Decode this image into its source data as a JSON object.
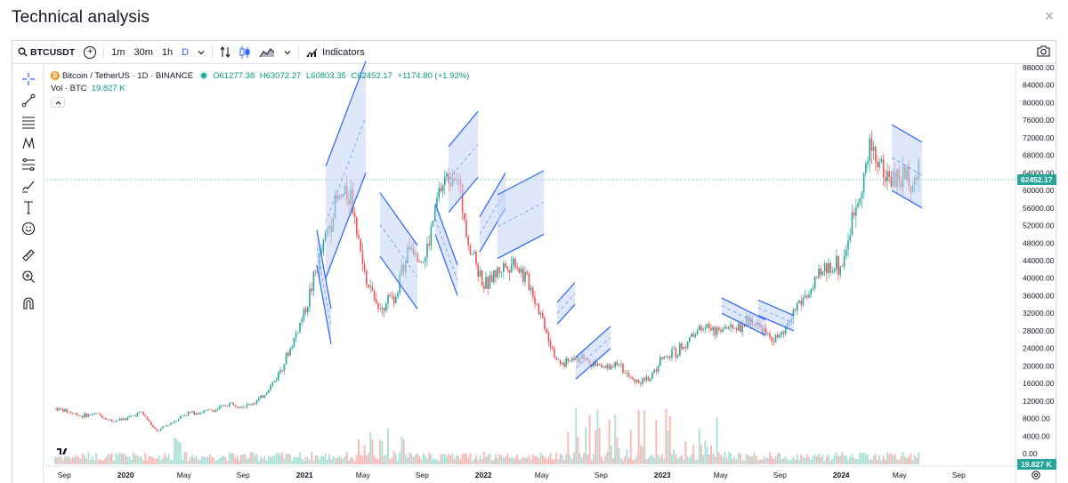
{
  "dialog": {
    "title": "Technical analysis",
    "close_glyph": "×"
  },
  "toolbar": {
    "symbol": "BTCUSDT",
    "intervals": [
      "1m",
      "30m",
      "1h",
      "D"
    ],
    "active_interval": "D",
    "indicators_label": "Indicators"
  },
  "legend": {
    "name": "Bitcoin / TetherUS · 1D · BINANCE",
    "open": "O61277.38",
    "high": "H63072.27",
    "low": "L60803.35",
    "close": "C62452.17",
    "change": "+1174.80 (+1.92%)",
    "vol_label": "Vol · BTC",
    "vol_value": "19.827 K"
  },
  "price_axis": {
    "ticks": [
      "88000.00",
      "84000.00",
      "80000.00",
      "76000.00",
      "72000.00",
      "68000.00",
      "64000.00",
      "60000.00",
      "56000.00",
      "52000.00",
      "48000.00",
      "44000.00",
      "40000.00",
      "36000.00",
      "32000.00",
      "28000.00",
      "24000.00",
      "20000.00",
      "16000.00",
      "12000.00",
      "8000.00",
      "4000.00",
      "0.00"
    ],
    "tick_values": [
      88000,
      84000,
      80000,
      76000,
      72000,
      68000,
      64000,
      60000,
      56000,
      52000,
      48000,
      44000,
      40000,
      36000,
      32000,
      28000,
      24000,
      20000,
      16000,
      12000,
      8000,
      4000,
      0
    ],
    "last_price_label": "62452.17",
    "last_price": 62452.17,
    "volume_label": "19.827 K"
  },
  "time_axis": {
    "labels": [
      {
        "text": "Sep",
        "year": false
      },
      {
        "text": "2020",
        "year": true
      },
      {
        "text": "May",
        "year": false
      },
      {
        "text": "Sep",
        "year": false
      },
      {
        "text": "2021",
        "year": true
      },
      {
        "text": "May",
        "year": false
      },
      {
        "text": "Sep",
        "year": false
      },
      {
        "text": "2022",
        "year": true
      },
      {
        "text": "May",
        "year": false
      },
      {
        "text": "Sep",
        "year": false
      },
      {
        "text": "2023",
        "year": true
      },
      {
        "text": "May",
        "year": false
      },
      {
        "text": "Sep",
        "year": false
      },
      {
        "text": "2024",
        "year": true
      },
      {
        "text": "May",
        "year": false
      },
      {
        "text": "Sep",
        "year": false
      }
    ]
  },
  "colors": {
    "up": "#26a69a",
    "down": "#ef5350",
    "drawing": "#2962ff",
    "channel_fill": "#c5d3f6",
    "price_line": "#26a69a"
  },
  "drawing_tools": [
    "crosshair-icon",
    "trend-line-icon",
    "horizontal-lines-icon",
    "pattern-icon",
    "fib-icon",
    "brush-icon",
    "text-icon",
    "emoji-icon",
    "ruler-icon",
    "zoom-icon",
    "magnet-icon"
  ],
  "chart_data": {
    "type": "candlestick",
    "series": [
      {
        "name": "BTCUSDT",
        "points": [
          [
            "2019-08",
            10500
          ],
          [
            "2019-09",
            9700
          ],
          [
            "2019-10",
            8600
          ],
          [
            "2019-11",
            9100
          ],
          [
            "2019-12",
            7400
          ],
          [
            "2020-01",
            8000
          ],
          [
            "2020-02",
            9500
          ],
          [
            "2020-03",
            5000
          ],
          [
            "2020-04",
            7000
          ],
          [
            "2020-05",
            9200
          ],
          [
            "2020-06",
            9500
          ],
          [
            "2020-07",
            10000
          ],
          [
            "2020-08",
            11500
          ],
          [
            "2020-09",
            10800
          ],
          [
            "2020-10",
            12500
          ],
          [
            "2020-11",
            17000
          ],
          [
            "2020-12",
            24000
          ],
          [
            "2021-01",
            33000
          ],
          [
            "2021-02",
            45000
          ],
          [
            "2021-03",
            57000
          ],
          [
            "2021-04",
            60000
          ],
          [
            "2021-05",
            40000
          ],
          [
            "2021-06",
            34000
          ],
          [
            "2021-07",
            36000
          ],
          [
            "2021-08",
            48000
          ],
          [
            "2021-09",
            44000
          ],
          [
            "2021-10",
            60000
          ],
          [
            "2021-11",
            66000
          ],
          [
            "2021-12",
            48000
          ],
          [
            "2022-01",
            38000
          ],
          [
            "2022-02",
            42000
          ],
          [
            "2022-03",
            44000
          ],
          [
            "2022-04",
            39000
          ],
          [
            "2022-05",
            30000
          ],
          [
            "2022-06",
            20000
          ],
          [
            "2022-07",
            22000
          ],
          [
            "2022-08",
            21000
          ],
          [
            "2022-09",
            19500
          ],
          [
            "2022-10",
            20000
          ],
          [
            "2022-11",
            16500
          ],
          [
            "2022-12",
            16800
          ],
          [
            "2023-01",
            22000
          ],
          [
            "2023-02",
            23500
          ],
          [
            "2023-03",
            27000
          ],
          [
            "2023-04",
            29500
          ],
          [
            "2023-05",
            27500
          ],
          [
            "2023-06",
            29000
          ],
          [
            "2023-07",
            30500
          ],
          [
            "2023-08",
            26500
          ],
          [
            "2023-09",
            26500
          ],
          [
            "2023-10",
            34000
          ],
          [
            "2023-11",
            37500
          ],
          [
            "2023-12",
            42500
          ],
          [
            "2024-01",
            43000
          ],
          [
            "2024-02",
            58000
          ],
          [
            "2024-03",
            70000
          ],
          [
            "2024-04",
            63000
          ]
        ]
      }
    ],
    "ylim": [
      0,
      88000
    ],
    "last_close": 62452.17
  }
}
